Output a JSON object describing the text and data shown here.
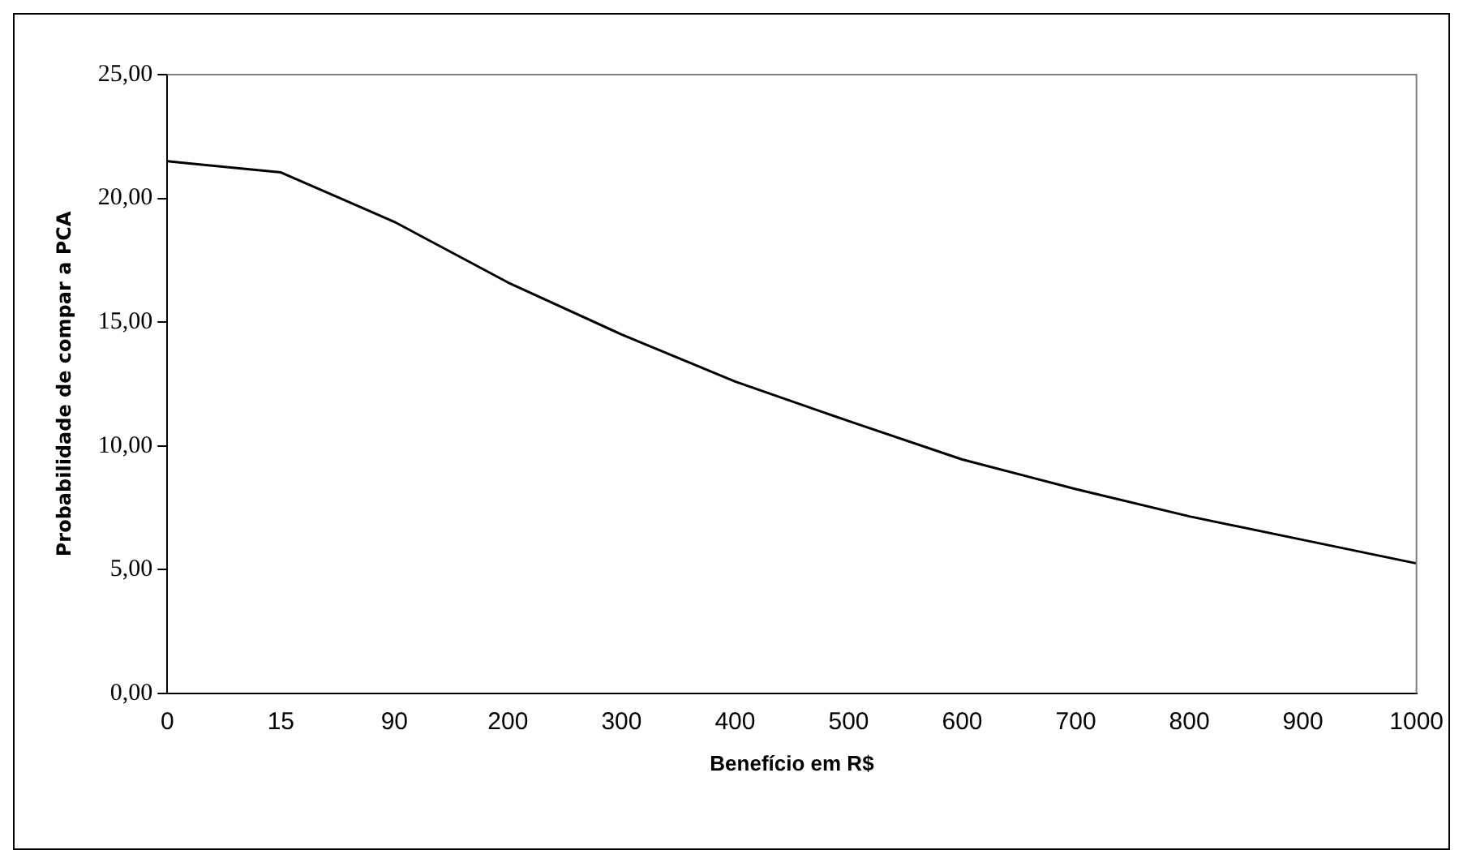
{
  "chart_data": {
    "type": "line",
    "xlabel": "Benefício em R$",
    "ylabel": "Probabilidade de compar a PCA",
    "categories": [
      "0",
      "15",
      "90",
      "200",
      "300",
      "400",
      "500",
      "600",
      "700",
      "800",
      "900",
      "1000"
    ],
    "series": [
      {
        "color": "#000000",
        "values": [
          21.5,
          21.05,
          19.05,
          16.6,
          14.5,
          12.6,
          11.0,
          9.45,
          8.25,
          7.15,
          6.2,
          5.25
        ]
      }
    ],
    "ylim": [
      0,
      25
    ],
    "yticks": [
      {
        "value": 0,
        "label": "0,00"
      },
      {
        "value": 5,
        "label": "5,00"
      },
      {
        "value": 10,
        "label": "10,00"
      },
      {
        "value": 15,
        "label": "15,00"
      },
      {
        "value": 20,
        "label": "20,00"
      },
      {
        "value": 25,
        "label": "25,00"
      }
    ],
    "grid": false,
    "legend": false,
    "marker": "none",
    "line_style": "solid"
  }
}
